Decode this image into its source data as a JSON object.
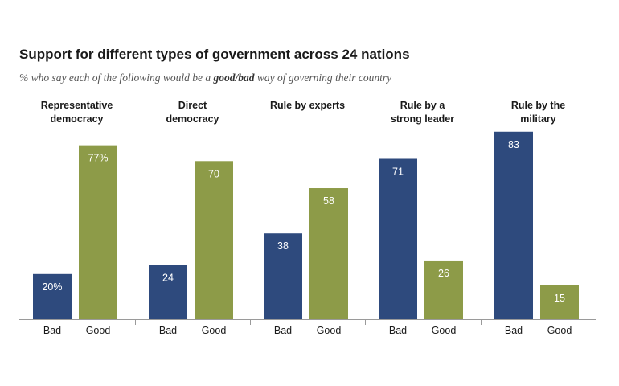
{
  "chart_data": {
    "type": "bar",
    "title": "Support for different types of government across 24 nations",
    "subtitle": {
      "prefix": "% who say each of the following would be a ",
      "good": "good",
      "slash": "/",
      "bad": "bad",
      "suffix": " way of governing their country"
    },
    "ylim": [
      0,
      100
    ],
    "colors": {
      "bad": "#2e4a7d",
      "good": "#8d9b48"
    },
    "groups": [
      {
        "title_lines": [
          "Representative",
          "democracy"
        ],
        "bars": [
          {
            "category": "Bad",
            "value": 20,
            "label": "20%",
            "series": "bad"
          },
          {
            "category": "Good",
            "value": 77,
            "label": "77%",
            "series": "good"
          }
        ]
      },
      {
        "title_lines": [
          "Direct",
          "democracy"
        ],
        "bars": [
          {
            "category": "Bad",
            "value": 24,
            "label": "24",
            "series": "bad"
          },
          {
            "category": "Good",
            "value": 70,
            "label": "70",
            "series": "good"
          }
        ]
      },
      {
        "title_lines": [
          "Rule by experts"
        ],
        "bars": [
          {
            "category": "Bad",
            "value": 38,
            "label": "38",
            "series": "bad"
          },
          {
            "category": "Good",
            "value": 58,
            "label": "58",
            "series": "good"
          }
        ]
      },
      {
        "title_lines": [
          "Rule by a",
          "strong leader"
        ],
        "bars": [
          {
            "category": "Bad",
            "value": 71,
            "label": "71",
            "series": "bad"
          },
          {
            "category": "Good",
            "value": 26,
            "label": "26",
            "series": "good"
          }
        ]
      },
      {
        "title_lines": [
          "Rule by the",
          "military"
        ],
        "bars": [
          {
            "category": "Bad",
            "value": 83,
            "label": "83",
            "series": "bad"
          },
          {
            "category": "Good",
            "value": 15,
            "label": "15",
            "series": "good"
          }
        ]
      }
    ]
  }
}
